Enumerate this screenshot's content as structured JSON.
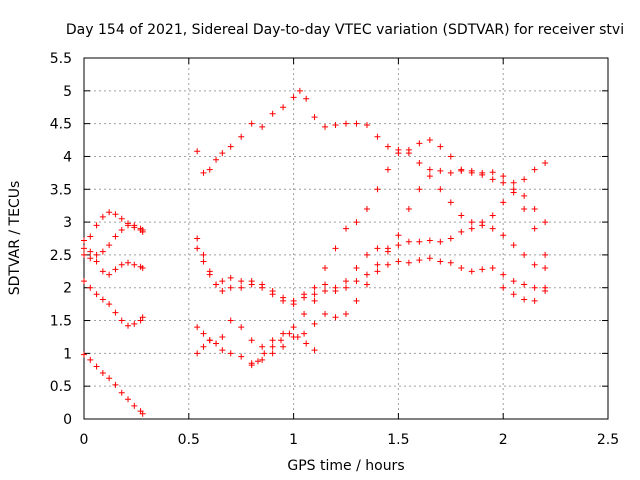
{
  "chart_data": {
    "type": "scatter",
    "title": "Day 154 of 2021, Sidereal Day-to-day VTEC variation (SDTVAR) for receiver stvi",
    "xlabel": "GPS time / hours",
    "ylabel": "SDTVAR / TECUs",
    "xlim": [
      0,
      2.5
    ],
    "ylim": [
      0,
      5.5
    ],
    "xticks": [
      "0",
      "0.5",
      "1",
      "1.5",
      "2",
      "2.5"
    ],
    "yticks": [
      "0",
      "0.5",
      "1",
      "1.5",
      "2",
      "2.5",
      "3",
      "3.5",
      "4",
      "4.5",
      "5",
      "5.5"
    ],
    "grid": true,
    "marker": "plus",
    "color": "#ff0000",
    "series": [
      {
        "x": [
          0.0,
          0.03,
          0.06,
          0.09,
          0.12,
          0.15,
          0.18,
          0.21,
          0.24,
          0.27,
          0.28
        ],
        "y": [
          0.98,
          0.9,
          0.8,
          0.7,
          0.62,
          0.52,
          0.4,
          0.3,
          0.2,
          0.12,
          0.08
        ]
      },
      {
        "x": [
          0.0,
          0.03,
          0.06,
          0.09,
          0.12,
          0.15,
          0.18,
          0.21,
          0.24,
          0.27,
          0.28
        ],
        "y": [
          2.1,
          2.0,
          1.9,
          1.82,
          1.75,
          1.62,
          1.5,
          1.42,
          1.45,
          1.5,
          1.55
        ]
      },
      {
        "x": [
          0.0,
          0.03,
          0.06,
          0.09,
          0.12,
          0.15,
          0.18,
          0.21,
          0.24,
          0.27,
          0.28
        ],
        "y": [
          2.5,
          2.45,
          2.4,
          2.25,
          2.2,
          2.28,
          2.35,
          2.38,
          2.35,
          2.32,
          2.3
        ]
      },
      {
        "x": [
          0.0,
          0.03,
          0.06,
          0.09,
          0.12,
          0.15,
          0.18,
          0.21,
          0.24,
          0.27,
          0.28
        ],
        "y": [
          2.72,
          2.78,
          2.95,
          3.08,
          3.15,
          3.12,
          3.05,
          2.98,
          2.92,
          2.88,
          2.85
        ]
      },
      {
        "x": [
          0.0,
          0.03,
          0.06,
          0.09,
          0.12,
          0.15,
          0.18,
          0.21,
          0.24,
          0.27,
          0.28
        ],
        "y": [
          2.6,
          2.55,
          2.5,
          2.55,
          2.65,
          2.78,
          2.88,
          2.95,
          2.95,
          2.9,
          2.88
        ]
      },
      {
        "x": [
          0.54,
          0.57,
          0.6,
          0.63,
          0.66,
          0.7,
          0.75,
          0.8,
          0.85,
          0.9,
          0.95,
          1.0,
          1.03,
          1.06,
          1.1,
          1.15,
          1.2,
          1.25,
          1.3,
          1.35,
          1.4,
          1.45,
          1.5,
          1.55,
          1.6,
          1.65,
          1.7,
          1.75,
          1.8,
          1.85,
          1.9,
          1.95,
          2.0,
          2.05,
          2.1,
          2.15,
          2.2
        ],
        "y": [
          4.08,
          3.75,
          3.8,
          3.95,
          4.05,
          4.15,
          4.3,
          4.5,
          4.45,
          4.65,
          4.75,
          4.9,
          5.0,
          4.88,
          4.6,
          4.45,
          4.48,
          4.5,
          4.5,
          4.48,
          4.3,
          4.15,
          4.1,
          4.05,
          3.9,
          3.8,
          3.78,
          3.75,
          3.78,
          3.75,
          3.72,
          3.65,
          3.6,
          3.45,
          3.2,
          2.9,
          2.5
        ]
      },
      {
        "x": [
          0.54,
          0.57,
          0.6,
          0.63,
          0.66,
          0.7,
          0.75,
          0.8,
          0.85,
          0.9,
          0.95,
          1.0,
          1.05,
          1.1,
          1.15,
          1.2,
          1.25,
          1.3,
          1.35,
          1.4,
          1.45,
          1.5,
          1.55,
          1.6,
          1.65,
          1.7,
          1.75,
          1.8,
          1.85,
          1.9,
          1.95,
          2.0,
          2.05,
          2.1,
          2.15,
          2.2
        ],
        "y": [
          2.75,
          2.5,
          2.25,
          2.05,
          1.95,
          2.0,
          2.1,
          2.05,
          2.0,
          1.9,
          1.85,
          1.8,
          1.85,
          1.9,
          2.3,
          2.6,
          2.9,
          3.0,
          3.2,
          3.5,
          3.8,
          4.05,
          4.1,
          4.2,
          4.25,
          4.15,
          4.0,
          3.8,
          3.78,
          3.75,
          3.76,
          3.7,
          3.6,
          3.4,
          3.2,
          3.0
        ]
      },
      {
        "x": [
          0.54,
          0.57,
          0.6,
          0.63,
          0.66,
          0.7,
          0.75,
          0.8,
          0.85,
          0.9,
          0.95,
          1.0,
          1.05,
          1.1,
          1.15,
          1.2,
          1.25,
          1.3,
          1.35,
          1.4,
          1.45,
          1.5,
          1.55,
          1.6,
          1.65,
          1.7,
          1.75,
          1.8,
          1.85,
          1.9,
          1.95,
          2.0,
          2.05,
          2.1,
          2.15,
          2.2
        ],
        "y": [
          2.6,
          2.4,
          2.2,
          2.05,
          2.1,
          2.15,
          2.0,
          2.1,
          2.05,
          1.95,
          1.8,
          1.75,
          1.9,
          2.0,
          2.05,
          1.95,
          2.0,
          2.1,
          2.2,
          2.35,
          2.55,
          2.8,
          3.2,
          3.5,
          3.7,
          3.5,
          3.3,
          3.1,
          3.0,
          2.95,
          2.9,
          2.8,
          2.65,
          2.5,
          2.35,
          2.3
        ]
      },
      {
        "x": [
          0.54,
          0.57,
          0.6,
          0.63,
          0.66,
          0.7,
          0.75,
          0.8,
          0.85,
          0.9,
          0.95,
          1.0,
          1.05,
          1.1,
          1.15,
          1.2,
          1.25,
          1.3,
          1.35,
          1.4,
          1.45,
          1.5,
          1.55,
          1.6,
          1.65,
          1.7,
          1.75,
          1.8,
          1.85,
          1.9,
          1.95,
          2.0,
          2.05,
          2.1,
          2.15,
          2.2
        ],
        "y": [
          1.0,
          1.1,
          1.2,
          1.15,
          1.05,
          1.0,
          0.95,
          0.85,
          0.9,
          1.0,
          1.1,
          1.25,
          1.3,
          1.45,
          1.6,
          1.55,
          1.6,
          1.8,
          2.05,
          2.25,
          2.35,
          2.4,
          2.38,
          2.42,
          2.45,
          2.4,
          2.38,
          2.3,
          2.25,
          2.28,
          2.3,
          2.2,
          2.1,
          2.05,
          2.0,
          1.95
        ]
      },
      {
        "x": [
          0.54,
          0.57,
          0.6,
          0.63,
          0.66,
          0.7,
          0.75,
          0.8,
          0.85,
          0.9,
          0.95,
          1.0,
          1.05,
          1.1,
          1.15,
          1.2,
          1.25,
          1.3,
          1.35,
          1.4,
          1.45,
          1.5,
          1.55,
          1.6,
          1.65,
          1.7,
          1.75,
          1.8,
          1.85,
          1.9,
          1.95,
          2.0,
          2.05,
          2.1,
          2.15,
          2.2
        ],
        "y": [
          1.4,
          1.3,
          1.2,
          1.15,
          1.25,
          1.5,
          1.4,
          1.2,
          1.1,
          1.2,
          1.3,
          1.4,
          1.6,
          1.8,
          1.95,
          2.0,
          2.1,
          2.3,
          2.5,
          2.6,
          2.6,
          2.65,
          2.7,
          2.7,
          2.72,
          2.7,
          2.75,
          2.85,
          2.9,
          3.0,
          3.1,
          3.3,
          3.5,
          3.65,
          3.8,
          3.9
        ]
      },
      {
        "x": [
          0.8,
          0.83,
          0.86,
          0.9,
          0.94,
          0.98,
          1.02,
          1.06,
          1.1
        ],
        "y": [
          0.82,
          0.88,
          1.0,
          1.1,
          1.2,
          1.3,
          1.25,
          1.15,
          1.05
        ]
      },
      {
        "x": [
          2.0,
          2.05,
          2.1,
          2.15,
          2.2
        ],
        "y": [
          2.0,
          1.9,
          1.82,
          1.8,
          2.0
        ]
      }
    ]
  }
}
